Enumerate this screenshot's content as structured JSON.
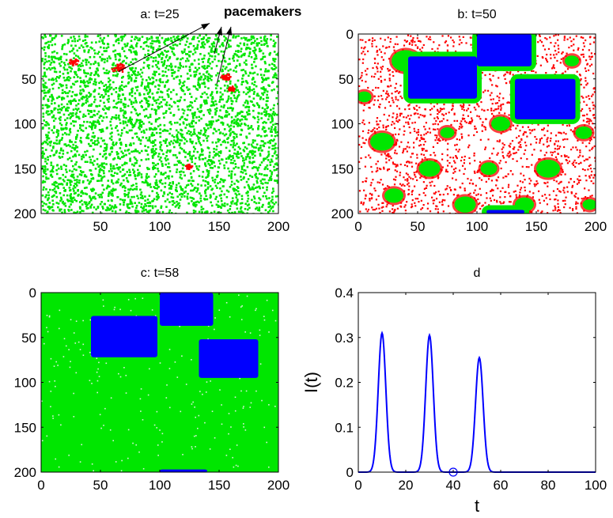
{
  "chart_data": [
    {
      "id": "a",
      "type": "heatmap",
      "title": "a: t=25",
      "xlim": [
        0,
        200
      ],
      "ylim": [
        0,
        200
      ],
      "y_reversed": true,
      "xticks": [
        50,
        100,
        150,
        200
      ],
      "yticks": [
        50,
        100,
        150,
        200
      ],
      "colors": {
        "susceptible": "#ffffff",
        "infected": "#00e600",
        "boundary": "#ff0000",
        "refractory": "#0000ff"
      },
      "background": "susceptible",
      "fill_state": "infected",
      "fill_density": 0.72,
      "hotspots": [
        {
          "x": 27,
          "y": 30,
          "r": 4
        },
        {
          "x": 65,
          "y": 37,
          "r": 6
        },
        {
          "x": 124,
          "y": 147,
          "r": 3
        },
        {
          "x": 155,
          "y": 47,
          "r": 4
        },
        {
          "x": 160,
          "y": 60,
          "r": 3
        }
      ],
      "annotation": {
        "text": "pacemakers",
        "arrow_tips": [
          {
            "x": 142,
            "y": -12
          },
          {
            "x": 152,
            "y": -8
          },
          {
            "x": 160,
            "y": -8
          }
        ],
        "arrow_tails": [
          {
            "x": 65,
            "y": 42
          },
          {
            "x": 146,
            "y": 22
          },
          {
            "x": 148,
            "y": 56
          }
        ]
      }
    },
    {
      "id": "b",
      "type": "heatmap",
      "title": "b: t=50",
      "xlim": [
        0,
        200
      ],
      "ylim": [
        0,
        200
      ],
      "y_reversed": true,
      "xticks": [
        0,
        50,
        100,
        150,
        200
      ],
      "yticks": [
        0,
        50,
        100,
        150,
        200
      ],
      "colors": {
        "susceptible": "#ffffff",
        "infected": "#00e600",
        "boundary": "#ff0000",
        "refractory": "#0000ff"
      },
      "background": "susceptible",
      "fill_state": "boundary",
      "fill_density": 0.55,
      "blobs": [
        {
          "x": 40,
          "y": 30,
          "r": 12
        },
        {
          "x": 20,
          "y": 120,
          "r": 10
        },
        {
          "x": 60,
          "y": 150,
          "r": 9
        },
        {
          "x": 120,
          "y": 100,
          "r": 8
        },
        {
          "x": 160,
          "y": 150,
          "r": 10
        },
        {
          "x": 190,
          "y": 110,
          "r": 7
        },
        {
          "x": 30,
          "y": 180,
          "r": 8
        },
        {
          "x": 90,
          "y": 190,
          "r": 9
        },
        {
          "x": 180,
          "y": 30,
          "r": 6
        },
        {
          "x": 5,
          "y": 70,
          "r": 6
        },
        {
          "x": 110,
          "y": 150,
          "r": 7
        },
        {
          "x": 140,
          "y": 190,
          "r": 8
        },
        {
          "x": 75,
          "y": 110,
          "r": 6
        },
        {
          "x": 195,
          "y": 190,
          "r": 6
        }
      ],
      "refractory_patches": [
        {
          "x0": 42,
          "x1": 100,
          "y0": 25,
          "y1": 72
        },
        {
          "x0": 100,
          "x1": 146,
          "y0": 0,
          "y1": 36
        },
        {
          "x0": 132,
          "x1": 183,
          "y0": 50,
          "y1": 95
        },
        {
          "x0": 108,
          "x1": 140,
          "y0": 196,
          "y1": 200
        }
      ]
    },
    {
      "id": "c",
      "type": "heatmap",
      "title": "c: t=58",
      "xlim": [
        0,
        200
      ],
      "ylim": [
        0,
        200
      ],
      "y_reversed": true,
      "xticks": [
        0,
        50,
        100,
        150,
        200
      ],
      "yticks": [
        0,
        50,
        100,
        150,
        200
      ],
      "colors": {
        "infected": "#00e600",
        "refractory": "#0000ff",
        "speck": "#d8f5d8"
      },
      "background": "infected",
      "refractory_patches": [
        {
          "x0": 42,
          "x1": 98,
          "y0": 26,
          "y1": 72
        },
        {
          "x0": 100,
          "x1": 145,
          "y0": 0,
          "y1": 37
        },
        {
          "x0": 133,
          "x1": 183,
          "y0": 52,
          "y1": 95
        },
        {
          "x0": 100,
          "x1": 140,
          "y0": 197,
          "y1": 200
        }
      ]
    },
    {
      "id": "d",
      "type": "line",
      "title": "d",
      "xlabel": "t",
      "ylabel": "I(t)",
      "xlim": [
        0,
        100
      ],
      "ylim": [
        0,
        0.4
      ],
      "xticks": [
        0,
        20,
        40,
        60,
        80,
        100
      ],
      "yticks": [
        0,
        0.1,
        0.2,
        0.3,
        0.4
      ],
      "series": [
        {
          "color": "#0000ff",
          "peaks": [
            {
              "t": 10,
              "height": 0.31,
              "width": 1.6
            },
            {
              "t": 30,
              "height": 0.305,
              "width": 1.6
            },
            {
              "t": 51,
              "height": 0.255,
              "width": 1.6
            }
          ]
        }
      ],
      "marker": {
        "t": 40,
        "value": 0,
        "shape": "open-circle"
      }
    }
  ]
}
